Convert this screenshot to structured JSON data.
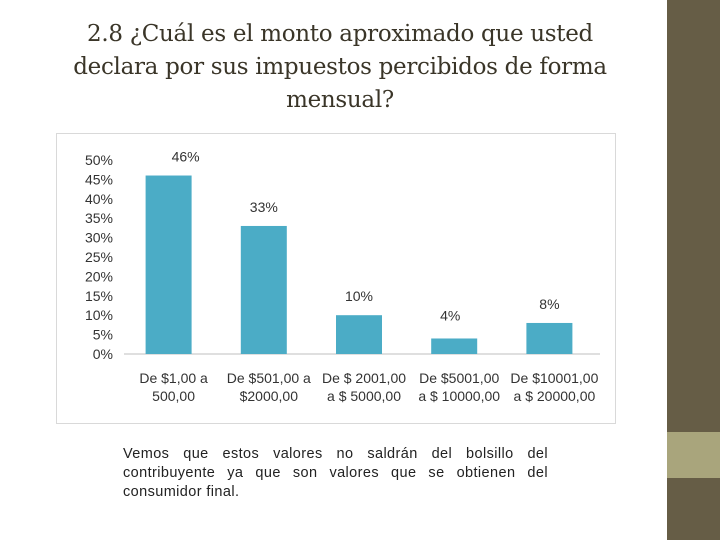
{
  "title": "2.8 ¿Cuál es el monto aproximado que usted\ndeclara  por sus impuestos percibidos de forma\nmensual?",
  "caption": "Vemos que estos valores no saldrán del bolsillo del contribuyente ya que son valores que se obtienen del consumidor final.",
  "colors": {
    "bar": "#4bacc6",
    "side_dark": "#665d46",
    "side_light": "#a9a57c"
  },
  "chart_data": {
    "type": "bar",
    "categories": [
      [
        "De $1,00 a",
        "500,00"
      ],
      [
        "De $501,00 a",
        "$2000,00"
      ],
      [
        "De $ 2001,00",
        "a $ 5000,00"
      ],
      [
        "De $5001,00",
        "a $ 10000,00"
      ],
      [
        "De $10001,00",
        "a $ 20000,00"
      ]
    ],
    "values": [
      46,
      33,
      10,
      4,
      8
    ],
    "data_labels": [
      "46%",
      "33%",
      "10%",
      "4%",
      "8%"
    ],
    "y_ticks": [
      "50%",
      "45%",
      "40%",
      "35%",
      "30%",
      "25%",
      "20%",
      "15%",
      "10%",
      "5%",
      "0%"
    ],
    "ylim": [
      0,
      50
    ],
    "title": "",
    "xlabel": "",
    "ylabel": "",
    "grid": false,
    "legend": "none"
  }
}
